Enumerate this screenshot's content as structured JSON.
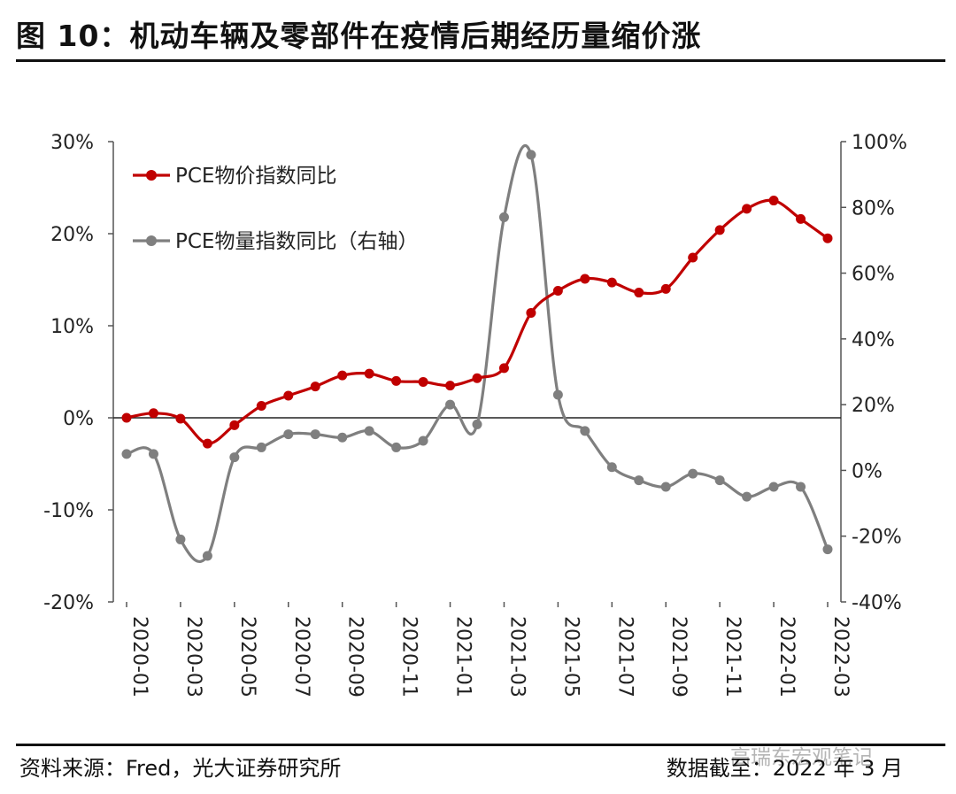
{
  "title": "图 10：机动车辆及零部件在疫情后期经历量缩价涨",
  "source": "资料来源：Fred，光大证券研究所",
  "as_of": "数据截至：2022 年 3 月",
  "watermark": "高瑞东宏观笔记",
  "chart_data": {
    "type": "line",
    "x": [
      "2020-01",
      "2020-02",
      "2020-03",
      "2020-04",
      "2020-05",
      "2020-06",
      "2020-07",
      "2020-08",
      "2020-09",
      "2020-10",
      "2020-11",
      "2020-12",
      "2021-01",
      "2021-02",
      "2021-03",
      "2021-04",
      "2021-05",
      "2021-06",
      "2021-07",
      "2021-08",
      "2021-09",
      "2021-10",
      "2021-11",
      "2021-12",
      "2022-01",
      "2022-02",
      "2022-03"
    ],
    "x_tick_labels": [
      "2020-01",
      "2020-03",
      "2020-05",
      "2020-07",
      "2020-09",
      "2020-11",
      "2021-01",
      "2021-03",
      "2021-05",
      "2021-07",
      "2021-09",
      "2021-11",
      "2022-01",
      "2022-03"
    ],
    "y_left": {
      "lim": [
        -20,
        30
      ],
      "ticks": [
        "-20%",
        "-10%",
        "0%",
        "10%",
        "20%",
        "30%"
      ]
    },
    "y_right": {
      "lim": [
        -40,
        100
      ],
      "ticks": [
        "-40%",
        "-20%",
        "0%",
        "20%",
        "40%",
        "60%",
        "80%",
        "100%"
      ]
    },
    "series": [
      {
        "name": "PCE物价指数同比",
        "axis": "left",
        "color": "#c00000",
        "values": [
          0.0,
          0.5,
          -0.1,
          -2.8,
          -0.8,
          1.3,
          2.4,
          3.4,
          4.6,
          4.8,
          4.0,
          3.9,
          3.5,
          4.3,
          5.4,
          11.4,
          13.8,
          15.1,
          14.7,
          13.6,
          14.0,
          17.4,
          20.4,
          22.7,
          23.6,
          21.6,
          19.5
        ]
      },
      {
        "name": "PCE物量指数同比（右轴）",
        "axis": "right",
        "color": "#7f7f7f",
        "values": [
          5,
          5,
          -21,
          -26,
          4,
          7,
          11,
          11,
          10,
          12,
          7,
          9,
          20,
          14,
          77,
          96,
          23,
          12,
          1,
          -3,
          -5,
          -1,
          -3,
          -8,
          -5,
          -5,
          -24
        ]
      }
    ],
    "legend_position": "top-left",
    "grid": false
  }
}
